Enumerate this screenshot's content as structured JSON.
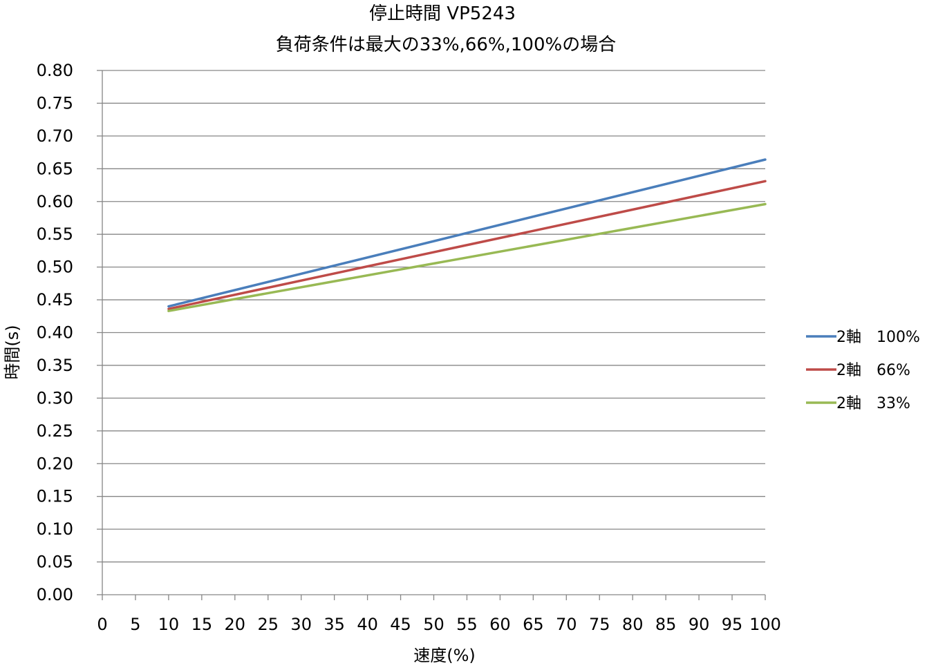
{
  "chart_data": {
    "type": "line",
    "title": "停止時間 VP5243",
    "subtitle": "負荷条件は最大の33%,66%,100%の場合",
    "xlabel": "速度(%)",
    "ylabel": "時間(s)",
    "xlim": [
      0,
      100
    ],
    "ylim": [
      0,
      0.8
    ],
    "x_ticks": [
      "0",
      "5",
      "10",
      "15",
      "20",
      "25",
      "30",
      "35",
      "40",
      "45",
      "50",
      "55",
      "60",
      "65",
      "70",
      "75",
      "80",
      "85",
      "90",
      "95",
      "100"
    ],
    "y_ticks": [
      "0.00",
      "0.05",
      "0.10",
      "0.15",
      "0.20",
      "0.25",
      "0.30",
      "0.35",
      "0.40",
      "0.45",
      "0.50",
      "0.55",
      "0.60",
      "0.65",
      "0.70",
      "0.75",
      "0.80"
    ],
    "grid": "horizontal",
    "legend_position": "right",
    "series": [
      {
        "name": "2軸　100%",
        "color": "#4a7ebb",
        "x": [
          10,
          100
        ],
        "y": [
          0.44,
          0.664
        ]
      },
      {
        "name": "2軸　66%",
        "color": "#be4b48",
        "x": [
          10,
          100
        ],
        "y": [
          0.436,
          0.631
        ]
      },
      {
        "name": "2軸　33%",
        "color": "#98b954",
        "x": [
          10,
          100
        ],
        "y": [
          0.433,
          0.596
        ]
      }
    ]
  }
}
